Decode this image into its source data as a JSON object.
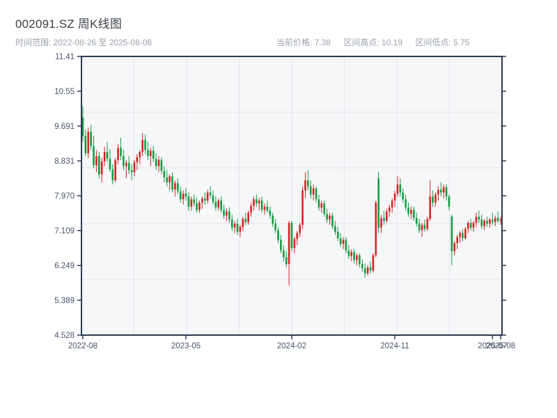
{
  "header": {
    "title": "002091.SZ 周K线图",
    "date_range": "时间范围: 2022-08-26 至 2025-08-08",
    "stats": [
      "当前价格: 7.38",
      "区间高点: 10.19",
      "区间低点: 5.75"
    ]
  },
  "colors": {
    "up": "#d62222",
    "down": "#149b41",
    "plot_bg": "#f6f7f9",
    "grid": "#e5e7ec",
    "axis": "#2a3a52",
    "tick_label": "#47536a"
  },
  "chart_data": {
    "type": "candlestick",
    "title": "002091.SZ 周K线图",
    "frequency": "weekly",
    "start_date": "2022-08-26",
    "end_date": "2025-08-08",
    "current_price": 7.38,
    "range_high": 10.19,
    "range_low": 5.75,
    "ylim": [
      4.528,
      11.41
    ],
    "ytick_labels": [
      "11.41",
      "10.55",
      "9.691",
      "8.831",
      "7.970",
      "7.109",
      "6.249",
      "5.389",
      "4.528"
    ],
    "ytick_values": [
      11.41,
      10.55,
      9.691,
      8.831,
      7.97,
      7.109,
      6.249,
      5.389,
      4.528
    ],
    "xticks": [
      {
        "label": "2022-08",
        "week": 0
      },
      {
        "label": "2023-05",
        "week": 38
      },
      {
        "label": "2024-02",
        "week": 77
      },
      {
        "label": "2024-11",
        "week": 115
      },
      {
        "label": "2025-07",
        "week": 151
      },
      {
        "label": "2025-08",
        "week": 154
      }
    ],
    "grid_cols": 8,
    "grid_rows": 5,
    "ohlc": [
      [
        9.9,
        10.19,
        9.3,
        9.45
      ],
      [
        9.45,
        9.6,
        8.95,
        9.02
      ],
      [
        9.02,
        9.65,
        8.9,
        9.55
      ],
      [
        9.55,
        9.72,
        9.1,
        9.2
      ],
      [
        9.2,
        9.45,
        8.65,
        8.72
      ],
      [
        8.72,
        9.1,
        8.55,
        8.95
      ],
      [
        8.95,
        9.05,
        8.4,
        8.5
      ],
      [
        8.5,
        8.9,
        8.3,
        8.82
      ],
      [
        8.82,
        9.18,
        8.7,
        9.05
      ],
      [
        9.05,
        9.3,
        8.8,
        8.88
      ],
      [
        8.88,
        9.12,
        8.55,
        8.62
      ],
      [
        8.62,
        8.75,
        8.25,
        8.35
      ],
      [
        8.35,
        8.9,
        8.3,
        8.85
      ],
      [
        8.85,
        9.25,
        8.75,
        9.15
      ],
      [
        9.15,
        9.4,
        8.85,
        8.95
      ],
      [
        8.95,
        9.1,
        8.6,
        8.7
      ],
      [
        8.7,
        8.85,
        8.4,
        8.78
      ],
      [
        8.78,
        8.95,
        8.5,
        8.6
      ],
      [
        8.6,
        8.75,
        8.35,
        8.55
      ],
      [
        8.55,
        8.85,
        8.45,
        8.8
      ],
      [
        8.8,
        9.0,
        8.6,
        8.92
      ],
      [
        8.92,
        9.1,
        8.75,
        9.05
      ],
      [
        9.05,
        9.52,
        8.95,
        9.35
      ],
      [
        9.35,
        9.48,
        9.0,
        9.1
      ],
      [
        9.1,
        9.3,
        8.85,
        8.95
      ],
      [
        8.95,
        9.15,
        8.7,
        9.08
      ],
      [
        9.08,
        9.2,
        8.8,
        8.88
      ],
      [
        8.88,
        9.02,
        8.6,
        8.7
      ],
      [
        8.7,
        8.95,
        8.55,
        8.85
      ],
      [
        8.85,
        8.92,
        8.5,
        8.58
      ],
      [
        8.58,
        8.7,
        8.3,
        8.42
      ],
      [
        8.42,
        8.6,
        8.2,
        8.3
      ],
      [
        8.3,
        8.5,
        8.1,
        8.45
      ],
      [
        8.45,
        8.55,
        8.05,
        8.12
      ],
      [
        8.12,
        8.35,
        7.95,
        8.28
      ],
      [
        8.28,
        8.4,
        8.0,
        8.08
      ],
      [
        8.08,
        8.2,
        7.8,
        7.88
      ],
      [
        7.88,
        8.1,
        7.75,
        8.02
      ],
      [
        8.02,
        8.15,
        7.85,
        7.95
      ],
      [
        7.95,
        8.05,
        7.6,
        7.7
      ],
      [
        7.7,
        7.95,
        7.6,
        7.88
      ],
      [
        7.88,
        8.0,
        7.7,
        7.78
      ],
      [
        7.78,
        7.92,
        7.55,
        7.62
      ],
      [
        7.62,
        7.85,
        7.55,
        7.8
      ],
      [
        7.8,
        7.95,
        7.65,
        7.9
      ],
      [
        7.9,
        8.05,
        7.75,
        7.85
      ],
      [
        7.85,
        8.12,
        7.78,
        8.05
      ],
      [
        8.05,
        8.2,
        7.9,
        7.98
      ],
      [
        7.98,
        8.1,
        7.75,
        7.82
      ],
      [
        7.82,
        7.95,
        7.6,
        7.68
      ],
      [
        7.68,
        7.9,
        7.6,
        7.85
      ],
      [
        7.85,
        7.95,
        7.55,
        7.62
      ],
      [
        7.62,
        7.75,
        7.4,
        7.48
      ],
      [
        7.48,
        7.65,
        7.35,
        7.58
      ],
      [
        7.58,
        7.68,
        7.3,
        7.38
      ],
      [
        7.38,
        7.5,
        7.1,
        7.18
      ],
      [
        7.18,
        7.35,
        7.05,
        7.28
      ],
      [
        7.28,
        7.4,
        7.0,
        7.08
      ],
      [
        7.08,
        7.25,
        6.95,
        7.2
      ],
      [
        7.2,
        7.45,
        7.1,
        7.4
      ],
      [
        7.4,
        7.55,
        7.25,
        7.32
      ],
      [
        7.32,
        7.6,
        7.25,
        7.55
      ],
      [
        7.55,
        7.8,
        7.45,
        7.72
      ],
      [
        7.72,
        7.95,
        7.6,
        7.88
      ],
      [
        7.88,
        8.0,
        7.7,
        7.78
      ],
      [
        7.78,
        7.92,
        7.6,
        7.85
      ],
      [
        7.85,
        7.95,
        7.55,
        7.62
      ],
      [
        7.62,
        7.78,
        7.5,
        7.7
      ],
      [
        7.7,
        7.85,
        7.55,
        7.6
      ],
      [
        7.6,
        7.7,
        7.4,
        7.48
      ],
      [
        7.48,
        7.55,
        7.2,
        7.28
      ],
      [
        7.28,
        7.4,
        7.05,
        7.12
      ],
      [
        7.12,
        7.2,
        6.8,
        6.88
      ],
      [
        6.88,
        7.0,
        6.55,
        6.62
      ],
      [
        6.62,
        6.75,
        6.35,
        6.45
      ],
      [
        6.45,
        6.6,
        6.2,
        6.28
      ],
      [
        6.28,
        7.35,
        5.75,
        7.3
      ],
      [
        7.3,
        7.35,
        6.6,
        6.68
      ],
      [
        6.68,
        6.95,
        6.55,
        6.9
      ],
      [
        6.9,
        7.1,
        6.75,
        7.05
      ],
      [
        7.05,
        7.3,
        6.95,
        7.25
      ],
      [
        7.25,
        8.2,
        7.15,
        8.1
      ],
      [
        8.1,
        8.55,
        7.9,
        8.35
      ],
      [
        8.35,
        8.6,
        8.1,
        8.2
      ],
      [
        8.2,
        8.35,
        7.9,
        8.0
      ],
      [
        8.0,
        8.25,
        7.85,
        8.15
      ],
      [
        8.15,
        8.2,
        7.8,
        7.88
      ],
      [
        7.88,
        8.0,
        7.6,
        7.68
      ],
      [
        7.68,
        7.85,
        7.55,
        7.78
      ],
      [
        7.78,
        7.85,
        7.45,
        7.52
      ],
      [
        7.52,
        7.65,
        7.3,
        7.38
      ],
      [
        7.38,
        7.55,
        7.25,
        7.48
      ],
      [
        7.48,
        7.55,
        7.15,
        7.22
      ],
      [
        7.22,
        7.35,
        7.0,
        7.08
      ],
      [
        7.08,
        7.2,
        6.85,
        6.92
      ],
      [
        6.92,
        7.05,
        6.7,
        6.78
      ],
      [
        6.78,
        6.95,
        6.65,
        6.88
      ],
      [
        6.88,
        6.95,
        6.55,
        6.62
      ],
      [
        6.62,
        6.75,
        6.4,
        6.48
      ],
      [
        6.48,
        6.65,
        6.35,
        6.58
      ],
      [
        6.58,
        6.65,
        6.3,
        6.38
      ],
      [
        6.38,
        6.55,
        6.25,
        6.5
      ],
      [
        6.5,
        6.55,
        6.2,
        6.28
      ],
      [
        6.28,
        6.4,
        6.1,
        6.18
      ],
      [
        6.18,
        6.3,
        5.95,
        6.05
      ],
      [
        6.05,
        6.25,
        6.0,
        6.2
      ],
      [
        6.2,
        6.35,
        6.05,
        6.12
      ],
      [
        6.12,
        6.55,
        6.08,
        6.5
      ],
      [
        6.5,
        7.85,
        6.45,
        7.8
      ],
      [
        8.4,
        8.56,
        7.05,
        7.18
      ],
      [
        7.18,
        7.5,
        7.05,
        7.42
      ],
      [
        7.42,
        7.6,
        7.25,
        7.35
      ],
      [
        7.35,
        7.65,
        7.3,
        7.58
      ],
      [
        7.58,
        7.75,
        7.45,
        7.68
      ],
      [
        7.68,
        7.9,
        7.55,
        7.85
      ],
      [
        7.85,
        8.1,
        7.7,
        8.02
      ],
      [
        8.02,
        8.45,
        7.95,
        8.25
      ],
      [
        8.25,
        8.4,
        7.95,
        8.05
      ],
      [
        8.05,
        8.15,
        7.8,
        7.88
      ],
      [
        7.88,
        8.0,
        7.6,
        7.68
      ],
      [
        7.68,
        7.8,
        7.45,
        7.52
      ],
      [
        7.52,
        7.7,
        7.4,
        7.62
      ],
      [
        7.62,
        7.7,
        7.35,
        7.42
      ],
      [
        7.42,
        7.55,
        7.2,
        7.28
      ],
      [
        7.28,
        7.4,
        7.05,
        7.12
      ],
      [
        7.12,
        7.3,
        6.95,
        7.25
      ],
      [
        7.25,
        7.38,
        7.08,
        7.15
      ],
      [
        7.15,
        7.45,
        7.1,
        7.4
      ],
      [
        7.4,
        8.35,
        7.35,
        7.95
      ],
      [
        7.95,
        8.1,
        7.7,
        7.8
      ],
      [
        7.8,
        8.05,
        7.7,
        8.0
      ],
      [
        8.0,
        8.2,
        7.85,
        8.12
      ],
      [
        8.12,
        8.3,
        7.95,
        8.05
      ],
      [
        8.05,
        8.25,
        7.9,
        8.18
      ],
      [
        8.18,
        8.25,
        7.85,
        7.95
      ],
      [
        7.95,
        8.0,
        7.6,
        7.7
      ],
      [
        7.45,
        7.5,
        6.25,
        6.6
      ],
      [
        6.6,
        6.85,
        6.5,
        6.8
      ],
      [
        6.8,
        7.0,
        6.65,
        6.95
      ],
      [
        6.95,
        7.1,
        6.8,
        7.05
      ],
      [
        7.05,
        7.15,
        6.85,
        6.92
      ],
      [
        6.92,
        7.2,
        6.88,
        7.15
      ],
      [
        7.15,
        7.35,
        7.05,
        7.3
      ],
      [
        7.3,
        7.4,
        7.1,
        7.18
      ],
      [
        7.18,
        7.35,
        7.08,
        7.3
      ],
      [
        7.3,
        7.55,
        7.2,
        7.45
      ],
      [
        7.45,
        7.6,
        7.3,
        7.38
      ],
      [
        7.38,
        7.5,
        7.15,
        7.22
      ],
      [
        7.22,
        7.4,
        7.12,
        7.35
      ],
      [
        7.35,
        7.45,
        7.2,
        7.28
      ],
      [
        7.28,
        7.42,
        7.18,
        7.38
      ],
      [
        7.38,
        7.55,
        7.25,
        7.32
      ],
      [
        7.32,
        7.48,
        7.22,
        7.42
      ],
      [
        7.42,
        7.58,
        7.3,
        7.35
      ],
      [
        7.35,
        7.45,
        7.25,
        7.38
      ]
    ]
  }
}
